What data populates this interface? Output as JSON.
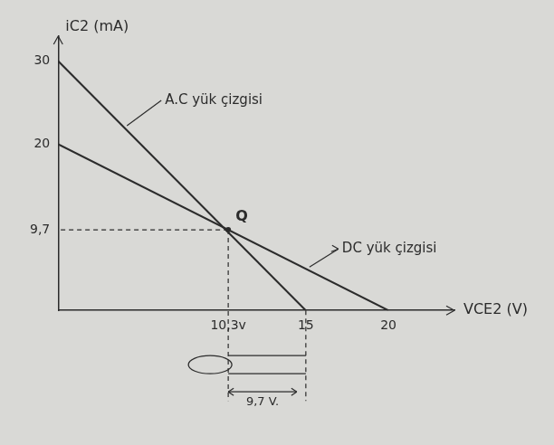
{
  "chart_data": {
    "type": "line",
    "x_label": "VCE2 (V)",
    "y_label": "iC2 (mA)",
    "series": [
      {
        "x": [
          0,
          15
        ],
        "values": [
          30,
          0
        ],
        "color": "#2b2b2b"
      },
      {
        "x": [
          0,
          20
        ],
        "values": [
          20,
          0
        ],
        "color": "#2b2b2b"
      }
    ],
    "xlim": [
      0,
      24
    ],
    "xticks": [
      {
        "value": 10.3,
        "label": "10,3v"
      },
      15,
      20
    ],
    "ylim": [
      0,
      33
    ],
    "yticks": [
      {
        "value": 9.7,
        "label": "9,7"
      },
      20,
      30
    ],
    "grid": false,
    "annotations": [
      {
        "text": "A.C yük çizgisi",
        "x": 4,
        "y": 22
      },
      {
        "text": "DC yük çizgisi",
        "x": 15,
        "y": 5
      },
      {
        "text": "Q",
        "x": 10.3,
        "y": 9.7
      },
      {
        "text": "9,7 V."
      }
    ]
  }
}
